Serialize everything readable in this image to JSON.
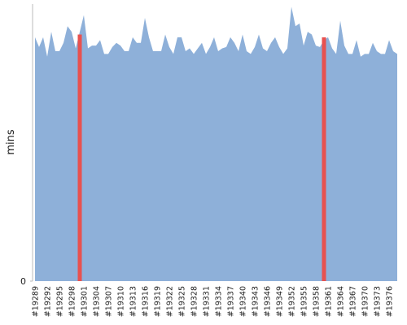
{
  "chart_data": {
    "type": "area",
    "y_label": "mins",
    "x": [
      "#19289",
      null,
      null,
      "#19292",
      null,
      null,
      "#19295",
      null,
      null,
      "#19298",
      null,
      null,
      "#19301",
      null,
      null,
      "#19304",
      null,
      null,
      "#19307",
      null,
      null,
      "#19310",
      null,
      null,
      "#19313",
      null,
      null,
      "#19316",
      null,
      null,
      "#19319",
      null,
      null,
      "#19322",
      null,
      null,
      "#19325",
      null,
      null,
      "#19328",
      null,
      null,
      "#19331",
      null,
      null,
      "#19334",
      null,
      null,
      "#19337",
      null,
      null,
      "#19340",
      null,
      null,
      "#19343",
      null,
      null,
      "#19346",
      null,
      null,
      "#19349",
      null,
      null,
      "#19352",
      null,
      null,
      "#19355",
      null,
      null,
      "#19358",
      null,
      null,
      "#19361",
      null,
      null,
      "#19364",
      null,
      null,
      "#19367",
      null,
      null,
      "#19370",
      null,
      null,
      "#19373",
      null,
      null,
      "#19376",
      null,
      null
    ],
    "series": [
      {
        "color": "#8eb0d9",
        "values": [
          88,
          84.5,
          88,
          81,
          90,
          83,
          83,
          86,
          92,
          90,
          84,
          90,
          96,
          84,
          85,
          85,
          87,
          82,
          82,
          84.5,
          86,
          85,
          83,
          83,
          88,
          86,
          86,
          95,
          88,
          83,
          83,
          83,
          89,
          84.5,
          82,
          88,
          88,
          83,
          84,
          82,
          84,
          86,
          82,
          84.5,
          88,
          83,
          84,
          84.5,
          88,
          86,
          83,
          89,
          83,
          82,
          84.5,
          89,
          84,
          83,
          86,
          88,
          84.5,
          82,
          84,
          99,
          92,
          93,
          85,
          90,
          89,
          85,
          84.5,
          87,
          88,
          84,
          82,
          94,
          85,
          82,
          82,
          87,
          81,
          82,
          82,
          86,
          83,
          82,
          82,
          87,
          83,
          82
        ]
      },
      {
        "color": "#e8514f",
        "values": [
          null,
          null,
          null,
          null,
          null,
          null,
          null,
          null,
          null,
          null,
          null,
          89,
          null,
          null,
          null,
          null,
          null,
          null,
          null,
          null,
          null,
          null,
          null,
          null,
          null,
          null,
          null,
          null,
          null,
          null,
          null,
          null,
          null,
          null,
          null,
          null,
          null,
          null,
          null,
          null,
          null,
          null,
          null,
          null,
          null,
          null,
          null,
          null,
          null,
          null,
          null,
          null,
          null,
          null,
          null,
          null,
          null,
          null,
          null,
          null,
          null,
          null,
          null,
          null,
          null,
          null,
          null,
          null,
          null,
          null,
          null,
          88,
          null,
          null,
          null,
          null,
          null,
          null,
          null,
          null,
          null,
          null,
          null,
          null,
          null,
          null,
          null,
          null,
          null,
          null
        ]
      }
    ],
    "ylim": [
      0,
      100
    ],
    "yticks": [
      0
    ]
  }
}
